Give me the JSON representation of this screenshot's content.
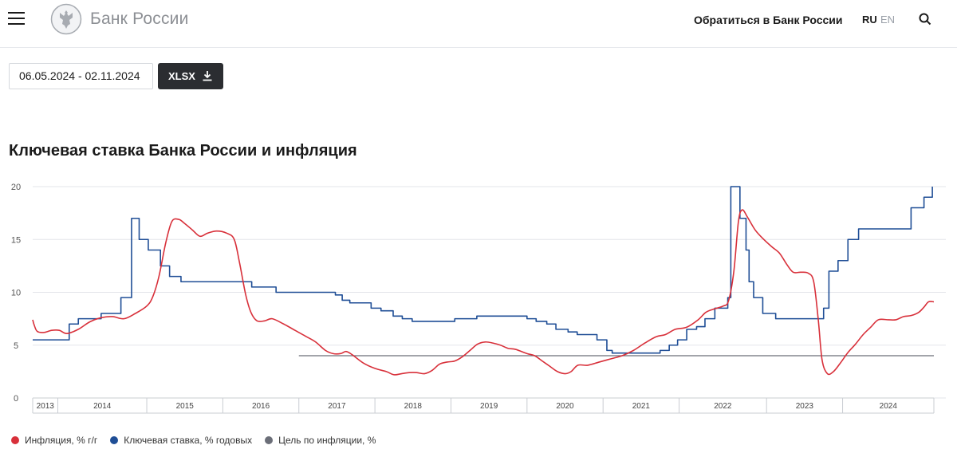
{
  "header": {
    "brand": "Банк России",
    "contact": "Обратиться в Банк России",
    "lang_ru": "RU",
    "lang_en": "EN"
  },
  "controls": {
    "date_range": "06.05.2024 - 02.11.2024",
    "xlsx_label": "XLSX"
  },
  "colors": {
    "inflation": "#d8303a",
    "key_rate": "#1f4e96",
    "target": "#6b6e78",
    "grid": "#e3e5ea"
  },
  "chart_data": {
    "type": "line",
    "title": "Ключевая ставка Банка России и инфляция",
    "xlabel": "",
    "ylabel": "",
    "xlim": [
      2013.0,
      2024.85
    ],
    "ylim": [
      0,
      20
    ],
    "yticks": [
      0,
      5,
      10,
      15,
      20
    ],
    "categories": [
      "2013",
      "2014",
      "2015",
      "2016",
      "2017",
      "2018",
      "2019",
      "2020",
      "2021",
      "2022",
      "2023",
      "2024"
    ],
    "category_ranges": [
      [
        2013.0,
        2013.33
      ],
      [
        2013.33,
        2014.5
      ],
      [
        2014.5,
        2015.5
      ],
      [
        2015.5,
        2016.5
      ],
      [
        2016.5,
        2017.5
      ],
      [
        2017.5,
        2018.5
      ],
      [
        2018.5,
        2019.5
      ],
      [
        2019.5,
        2020.5
      ],
      [
        2020.5,
        2021.5
      ],
      [
        2021.5,
        2022.65
      ],
      [
        2022.65,
        2023.65
      ],
      [
        2023.65,
        2024.85
      ]
    ],
    "series": [
      {
        "name": "Инфляция, % г/г",
        "shape": "smooth",
        "points": [
          [
            2013.0,
            7.4
          ],
          [
            2013.02,
            6.9
          ],
          [
            2013.06,
            6.3
          ],
          [
            2013.15,
            6.2
          ],
          [
            2013.25,
            6.4
          ],
          [
            2013.35,
            6.4
          ],
          [
            2013.45,
            6.1
          ],
          [
            2013.6,
            6.5
          ],
          [
            2013.75,
            7.2
          ],
          [
            2013.9,
            7.6
          ],
          [
            2014.05,
            7.7
          ],
          [
            2014.2,
            7.5
          ],
          [
            2014.35,
            8.0
          ],
          [
            2014.5,
            8.7
          ],
          [
            2014.58,
            9.6
          ],
          [
            2014.66,
            11.5
          ],
          [
            2014.75,
            14.7
          ],
          [
            2014.83,
            16.7
          ],
          [
            2014.92,
            16.9
          ],
          [
            2015.0,
            16.5
          ],
          [
            2015.1,
            15.9
          ],
          [
            2015.2,
            15.3
          ],
          [
            2015.3,
            15.6
          ],
          [
            2015.42,
            15.8
          ],
          [
            2015.55,
            15.6
          ],
          [
            2015.65,
            15.0
          ],
          [
            2015.72,
            12.8
          ],
          [
            2015.8,
            9.8
          ],
          [
            2015.87,
            8.1
          ],
          [
            2015.95,
            7.3
          ],
          [
            2016.05,
            7.3
          ],
          [
            2016.15,
            7.5
          ],
          [
            2016.3,
            7.0
          ],
          [
            2016.45,
            6.4
          ],
          [
            2016.6,
            5.8
          ],
          [
            2016.72,
            5.3
          ],
          [
            2016.85,
            4.5
          ],
          [
            2016.95,
            4.2
          ],
          [
            2017.05,
            4.2
          ],
          [
            2017.12,
            4.4
          ],
          [
            2017.2,
            4.1
          ],
          [
            2017.35,
            3.3
          ],
          [
            2017.5,
            2.8
          ],
          [
            2017.65,
            2.5
          ],
          [
            2017.75,
            2.2
          ],
          [
            2017.85,
            2.3
          ],
          [
            2017.95,
            2.4
          ],
          [
            2018.05,
            2.4
          ],
          [
            2018.15,
            2.3
          ],
          [
            2018.25,
            2.6
          ],
          [
            2018.35,
            3.2
          ],
          [
            2018.45,
            3.4
          ],
          [
            2018.55,
            3.5
          ],
          [
            2018.65,
            3.9
          ],
          [
            2018.75,
            4.5
          ],
          [
            2018.85,
            5.1
          ],
          [
            2018.95,
            5.3
          ],
          [
            2019.05,
            5.2
          ],
          [
            2019.15,
            5.0
          ],
          [
            2019.25,
            4.7
          ],
          [
            2019.35,
            4.6
          ],
          [
            2019.5,
            4.2
          ],
          [
            2019.6,
            4.0
          ],
          [
            2019.7,
            3.5
          ],
          [
            2019.8,
            3.0
          ],
          [
            2019.9,
            2.5
          ],
          [
            2020.0,
            2.3
          ],
          [
            2020.08,
            2.5
          ],
          [
            2020.17,
            3.1
          ],
          [
            2020.3,
            3.1
          ],
          [
            2020.45,
            3.4
          ],
          [
            2020.6,
            3.7
          ],
          [
            2020.75,
            4.0
          ],
          [
            2020.9,
            4.5
          ],
          [
            2021.05,
            5.2
          ],
          [
            2021.2,
            5.8
          ],
          [
            2021.32,
            6.0
          ],
          [
            2021.45,
            6.5
          ],
          [
            2021.6,
            6.7
          ],
          [
            2021.75,
            7.4
          ],
          [
            2021.85,
            8.1
          ],
          [
            2021.95,
            8.4
          ],
          [
            2022.08,
            8.7
          ],
          [
            2022.15,
            9.2
          ],
          [
            2022.22,
            12.0
          ],
          [
            2022.28,
            16.7
          ],
          [
            2022.33,
            17.8
          ],
          [
            2022.4,
            17.1
          ],
          [
            2022.5,
            15.9
          ],
          [
            2022.6,
            15.1
          ],
          [
            2022.72,
            14.3
          ],
          [
            2022.82,
            13.7
          ],
          [
            2022.92,
            12.6
          ],
          [
            2023.0,
            11.9
          ],
          [
            2023.1,
            11.9
          ],
          [
            2023.2,
            11.8
          ],
          [
            2023.27,
            11.0
          ],
          [
            2023.33,
            7.4
          ],
          [
            2023.38,
            3.6
          ],
          [
            2023.45,
            2.3
          ],
          [
            2023.53,
            2.5
          ],
          [
            2023.62,
            3.3
          ],
          [
            2023.72,
            4.3
          ],
          [
            2023.82,
            5.1
          ],
          [
            2023.92,
            6.0
          ],
          [
            2024.02,
            6.7
          ],
          [
            2024.12,
            7.4
          ],
          [
            2024.25,
            7.4
          ],
          [
            2024.35,
            7.4
          ],
          [
            2024.45,
            7.7
          ],
          [
            2024.55,
            7.8
          ],
          [
            2024.65,
            8.1
          ],
          [
            2024.72,
            8.6
          ],
          [
            2024.78,
            9.1
          ],
          [
            2024.85,
            9.1
          ]
        ]
      },
      {
        "name": "Ключевая ставка, % годовых",
        "shape": "step",
        "points": [
          [
            2013.0,
            5.5
          ],
          [
            2013.48,
            7.0
          ],
          [
            2013.6,
            7.5
          ],
          [
            2013.9,
            8.0
          ],
          [
            2014.16,
            9.5
          ],
          [
            2014.3,
            17.0
          ],
          [
            2014.4,
            15.0
          ],
          [
            2014.52,
            14.0
          ],
          [
            2014.68,
            12.5
          ],
          [
            2014.8,
            11.5
          ],
          [
            2014.95,
            11.0
          ],
          [
            2015.88,
            10.5
          ],
          [
            2016.2,
            10.0
          ],
          [
            2016.98,
            9.75
          ],
          [
            2017.07,
            9.25
          ],
          [
            2017.17,
            9.0
          ],
          [
            2017.45,
            8.5
          ],
          [
            2017.58,
            8.25
          ],
          [
            2017.74,
            7.75
          ],
          [
            2017.86,
            7.5
          ],
          [
            2017.99,
            7.25
          ],
          [
            2018.55,
            7.5
          ],
          [
            2018.84,
            7.75
          ],
          [
            2019.5,
            7.5
          ],
          [
            2019.62,
            7.25
          ],
          [
            2019.76,
            7.0
          ],
          [
            2019.88,
            6.5
          ],
          [
            2020.04,
            6.25
          ],
          [
            2020.16,
            6.0
          ],
          [
            2020.42,
            5.5
          ],
          [
            2020.55,
            4.5
          ],
          [
            2020.62,
            4.25
          ],
          [
            2021.25,
            4.5
          ],
          [
            2021.37,
            5.0
          ],
          [
            2021.48,
            5.5
          ],
          [
            2021.6,
            6.5
          ],
          [
            2021.73,
            6.75
          ],
          [
            2021.84,
            7.5
          ],
          [
            2021.97,
            8.5
          ],
          [
            2022.14,
            9.5
          ],
          [
            2022.18,
            20.0
          ],
          [
            2022.3,
            17.0
          ],
          [
            2022.38,
            14.0
          ],
          [
            2022.42,
            11.0
          ],
          [
            2022.48,
            9.5
          ],
          [
            2022.6,
            8.0
          ],
          [
            2022.77,
            7.5
          ],
          [
            2023.4,
            8.5
          ],
          [
            2023.47,
            12.0
          ],
          [
            2023.59,
            13.0
          ],
          [
            2023.72,
            15.0
          ],
          [
            2023.86,
            16.0
          ],
          [
            2024.55,
            18.0
          ],
          [
            2024.72,
            19.0
          ],
          [
            2024.83,
            21.0
          ]
        ]
      },
      {
        "name": "Цель по инфляции, %",
        "shape": "linear",
        "points": [
          [
            2016.5,
            4.0
          ],
          [
            2024.85,
            4.0
          ]
        ]
      }
    ],
    "legend_position": "bottom-left"
  }
}
